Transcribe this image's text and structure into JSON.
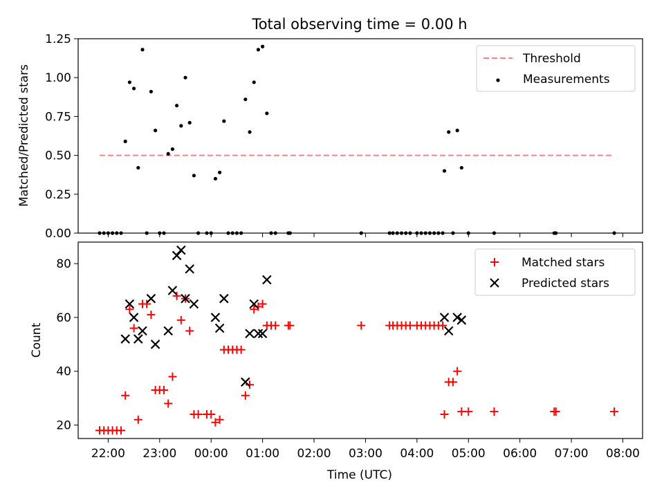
{
  "colors": {
    "threshold": "#ff8080",
    "measurement": "#000000",
    "matched": "#ff0000",
    "predicted": "#000000"
  },
  "chart_data": [
    {
      "type": "scatter",
      "title": "Total observing time = 0.00 h",
      "xlabel": "",
      "ylabel": "Matched/Predicted stars",
      "x_unit": "time of day (UTC), plotted across midnight",
      "xlim": [
        "21:25",
        "08:23"
      ],
      "ylim": [
        0,
        1.25
      ],
      "yticks": [
        "0.00",
        "0.25",
        "0.50",
        "0.75",
        "1.00",
        "1.25"
      ],
      "legend": {
        "placement": "top-right",
        "entries": [
          "Threshold",
          "Measurements"
        ]
      },
      "threshold": {
        "name": "Threshold",
        "y": 0.5,
        "x_range": [
          "21:50",
          "07:50"
        ]
      },
      "series": [
        {
          "name": "Measurements",
          "points": [
            [
              "21:50",
              0.0
            ],
            [
              "21:55",
              0.0
            ],
            [
              "22:00",
              0.0
            ],
            [
              "22:05",
              0.0
            ],
            [
              "22:10",
              0.0
            ],
            [
              "22:15",
              0.0
            ],
            [
              "22:20",
              0.59
            ],
            [
              "22:25",
              0.97
            ],
            [
              "22:30",
              0.93
            ],
            [
              "22:35",
              0.42
            ],
            [
              "22:40",
              1.18
            ],
            [
              "22:45",
              0.0
            ],
            [
              "22:50",
              0.91
            ],
            [
              "22:55",
              0.66
            ],
            [
              "23:00",
              0.0
            ],
            [
              "23:05",
              0.0
            ],
            [
              "23:10",
              0.51
            ],
            [
              "23:15",
              0.54
            ],
            [
              "23:20",
              0.82
            ],
            [
              "23:25",
              0.69
            ],
            [
              "23:30",
              1.0
            ],
            [
              "23:35",
              0.71
            ],
            [
              "23:40",
              0.37
            ],
            [
              "23:45",
              0.0
            ],
            [
              "23:55",
              0.0
            ],
            [
              "00:00",
              0.0
            ],
            [
              "00:05",
              0.35
            ],
            [
              "00:10",
              0.39
            ],
            [
              "00:15",
              0.72
            ],
            [
              "00:20",
              0.0
            ],
            [
              "00:25",
              0.0
            ],
            [
              "00:30",
              0.0
            ],
            [
              "00:35",
              0.0
            ],
            [
              "00:40",
              0.86
            ],
            [
              "00:45",
              0.65
            ],
            [
              "00:50",
              0.97
            ],
            [
              "00:55",
              1.18
            ],
            [
              "01:00",
              1.2
            ],
            [
              "01:05",
              0.77
            ],
            [
              "01:10",
              0.0
            ],
            [
              "01:15",
              0.0
            ],
            [
              "01:30",
              0.0
            ],
            [
              "01:32",
              0.0
            ],
            [
              "02:55",
              0.0
            ],
            [
              "03:28",
              0.0
            ],
            [
              "03:32",
              0.0
            ],
            [
              "03:37",
              0.0
            ],
            [
              "03:42",
              0.0
            ],
            [
              "03:47",
              0.0
            ],
            [
              "03:52",
              0.0
            ],
            [
              "04:00",
              0.0
            ],
            [
              "04:05",
              0.0
            ],
            [
              "04:10",
              0.0
            ],
            [
              "04:15",
              0.0
            ],
            [
              "04:20",
              0.0
            ],
            [
              "04:25",
              0.0
            ],
            [
              "04:30",
              0.0
            ],
            [
              "04:32",
              0.4
            ],
            [
              "04:37",
              0.65
            ],
            [
              "04:42",
              0.0
            ],
            [
              "04:47",
              0.66
            ],
            [
              "04:52",
              0.42
            ],
            [
              "05:00",
              0.0
            ],
            [
              "05:30",
              0.0
            ],
            [
              "06:40",
              0.0
            ],
            [
              "06:42",
              0.0
            ],
            [
              "07:50",
              0.0
            ]
          ]
        }
      ]
    },
    {
      "type": "scatter",
      "title": "",
      "xlabel": "Time (UTC)",
      "ylabel": "Count",
      "x_unit": "time of day (UTC), plotted across midnight",
      "xlim": [
        "21:25",
        "08:23"
      ],
      "ylim": [
        15,
        88
      ],
      "yticks": [
        "20",
        "40",
        "60",
        "80"
      ],
      "xticks": [
        "22:00",
        "23:00",
        "00:00",
        "01:00",
        "02:00",
        "03:00",
        "04:00",
        "05:00",
        "06:00",
        "07:00",
        "08:00"
      ],
      "legend": {
        "placement": "top-right",
        "entries": [
          "Matched stars",
          "Predicted stars"
        ]
      },
      "series": [
        {
          "name": "Matched stars",
          "points": [
            [
              "21:50",
              18
            ],
            [
              "21:55",
              18
            ],
            [
              "22:00",
              18
            ],
            [
              "22:05",
              18
            ],
            [
              "22:10",
              18
            ],
            [
              "22:15",
              18
            ],
            [
              "22:20",
              31
            ],
            [
              "22:25",
              63
            ],
            [
              "22:30",
              56
            ],
            [
              "22:35",
              22
            ],
            [
              "22:40",
              65
            ],
            [
              "22:45",
              65
            ],
            [
              "22:50",
              61
            ],
            [
              "22:55",
              33
            ],
            [
              "23:00",
              33
            ],
            [
              "23:05",
              33
            ],
            [
              "23:10",
              28
            ],
            [
              "23:15",
              38
            ],
            [
              "23:20",
              68
            ],
            [
              "23:25",
              59
            ],
            [
              "23:30",
              67
            ],
            [
              "23:35",
              55
            ],
            [
              "23:40",
              24
            ],
            [
              "23:45",
              24
            ],
            [
              "23:55",
              24
            ],
            [
              "00:00",
              24
            ],
            [
              "00:05",
              21
            ],
            [
              "00:10",
              22
            ],
            [
              "00:15",
              48
            ],
            [
              "00:20",
              48
            ],
            [
              "00:25",
              48
            ],
            [
              "00:30",
              48
            ],
            [
              "00:35",
              48
            ],
            [
              "00:40",
              31
            ],
            [
              "00:45",
              35
            ],
            [
              "00:50",
              63
            ],
            [
              "00:55",
              64
            ],
            [
              "01:00",
              65
            ],
            [
              "01:05",
              57
            ],
            [
              "01:10",
              57
            ],
            [
              "01:15",
              57
            ],
            [
              "01:30",
              57
            ],
            [
              "01:32",
              57
            ],
            [
              "02:55",
              57
            ],
            [
              "03:28",
              57
            ],
            [
              "03:32",
              57
            ],
            [
              "03:37",
              57
            ],
            [
              "03:42",
              57
            ],
            [
              "03:47",
              57
            ],
            [
              "03:52",
              57
            ],
            [
              "04:00",
              57
            ],
            [
              "04:05",
              57
            ],
            [
              "04:10",
              57
            ],
            [
              "04:15",
              57
            ],
            [
              "04:20",
              57
            ],
            [
              "04:25",
              57
            ],
            [
              "04:30",
              57
            ],
            [
              "04:32",
              24
            ],
            [
              "04:37",
              36
            ],
            [
              "04:42",
              36
            ],
            [
              "04:47",
              40
            ],
            [
              "04:52",
              25
            ],
            [
              "05:00",
              25
            ],
            [
              "05:30",
              25
            ],
            [
              "06:40",
              25
            ],
            [
              "06:42",
              25
            ],
            [
              "07:50",
              25
            ]
          ]
        },
        {
          "name": "Predicted stars",
          "points": [
            [
              "22:20",
              52
            ],
            [
              "22:25",
              65
            ],
            [
              "22:30",
              60
            ],
            [
              "22:35",
              52
            ],
            [
              "22:40",
              55
            ],
            [
              "22:50",
              67
            ],
            [
              "22:55",
              50
            ],
            [
              "23:10",
              55
            ],
            [
              "23:15",
              70
            ],
            [
              "23:20",
              83
            ],
            [
              "23:25",
              85
            ],
            [
              "23:30",
              67
            ],
            [
              "23:35",
              78
            ],
            [
              "23:40",
              65
            ],
            [
              "00:05",
              60
            ],
            [
              "00:10",
              56
            ],
            [
              "00:15",
              67
            ],
            [
              "00:40",
              36
            ],
            [
              "00:45",
              54
            ],
            [
              "00:50",
              65
            ],
            [
              "00:55",
              54
            ],
            [
              "01:00",
              54
            ],
            [
              "01:05",
              74
            ],
            [
              "04:32",
              60
            ],
            [
              "04:37",
              55
            ],
            [
              "04:47",
              60
            ],
            [
              "04:52",
              59
            ]
          ]
        }
      ]
    }
  ]
}
